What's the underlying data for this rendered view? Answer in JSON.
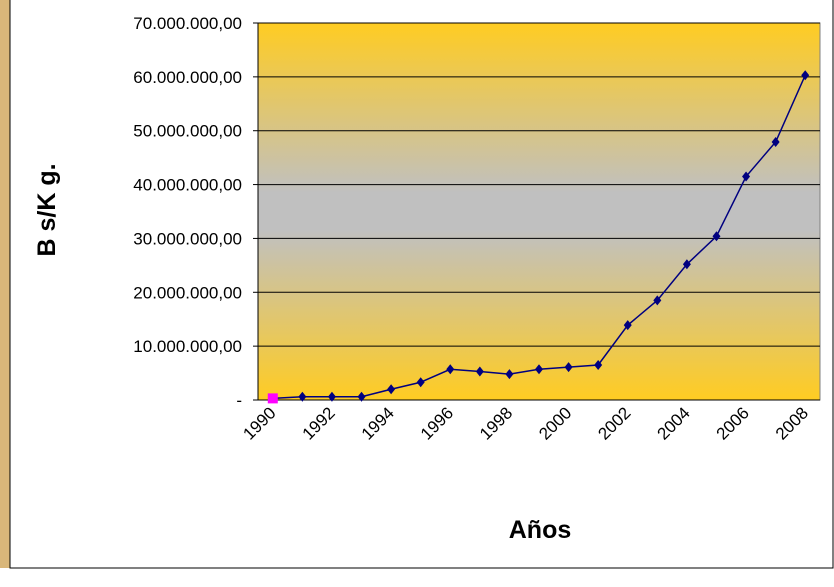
{
  "chart_data": {
    "type": "line",
    "xlabel": "Años",
    "ylabel": "B s/K g.",
    "categories": [
      "1990",
      null,
      "1992",
      null,
      "1994",
      null,
      "1996",
      null,
      "1998",
      null,
      "2000",
      null,
      "2002",
      null,
      "2004",
      null,
      "2006",
      null,
      "2008"
    ],
    "series": [
      {
        "color": "#000080",
        "first_marker_color": "#ff00ff",
        "values": [
          300000,
          600000,
          600000,
          600000,
          2000000,
          3300000,
          5700000,
          5300000,
          4800000,
          5700000,
          6100000,
          6500000,
          13900000,
          18500000,
          25200000,
          30400000,
          41500000,
          47900000,
          60300000
        ]
      }
    ],
    "ylim": [
      0,
      70000000
    ],
    "yticks": [
      {
        "value": 0,
        "label": "-"
      },
      {
        "value": 10000000,
        "label": "10.000.000,00"
      },
      {
        "value": 20000000,
        "label": "20.000.000,00"
      },
      {
        "value": 30000000,
        "label": "30.000.000,00"
      },
      {
        "value": 40000000,
        "label": "40.000.000,00"
      },
      {
        "value": 50000000,
        "label": "50.000.000,00"
      },
      {
        "value": 60000000,
        "label": "60.000.000,00"
      },
      {
        "value": 70000000,
        "label": "70.000.000,00"
      }
    ],
    "grid": true
  }
}
